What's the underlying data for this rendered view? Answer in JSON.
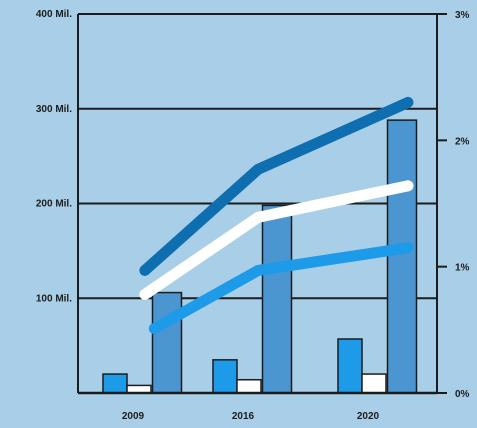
{
  "chart_data": {
    "type": "bar",
    "categories": [
      "2009",
      "2016",
      "2020"
    ],
    "left_axis": {
      "ylim": [
        0,
        400
      ],
      "ticks": [
        {
          "value": 100,
          "label": "100 Mil."
        },
        {
          "value": 200,
          "label": "200 Mil."
        },
        {
          "value": 300,
          "label": "300 Mil."
        },
        {
          "value": 400,
          "label": "400 Mil."
        }
      ]
    },
    "right_axis": {
      "ylim": [
        0,
        3
      ],
      "ticks": [
        {
          "value": 0,
          "label": "0%"
        },
        {
          "value": 1,
          "label": "1%"
        },
        {
          "value": 2,
          "label": "2%"
        },
        {
          "value": 3,
          "label": "3%"
        }
      ]
    },
    "bar_series": [
      {
        "color": "#1e9be8",
        "values": [
          20,
          35,
          57
        ]
      },
      {
        "color": "#ffffff",
        "values": [
          8,
          14,
          20
        ]
      },
      {
        "color": "#4b95d1",
        "values": [
          106,
          198,
          288
        ]
      }
    ],
    "line_series": [
      {
        "color": "#0e6eb0",
        "axis": "right",
        "x": [
          2008.8,
          2016,
          2020.8
        ],
        "values": [
          0.97,
          1.77,
          2.3
        ]
      },
      {
        "color": "#ffffff",
        "axis": "right",
        "x": [
          2008.8,
          2016,
          2020.8
        ],
        "values": [
          0.78,
          1.39,
          1.64
        ]
      },
      {
        "color": "#1e9be8",
        "axis": "right",
        "x": [
          2009.4,
          2016,
          2020.8
        ],
        "values": [
          0.51,
          0.97,
          1.15
        ]
      }
    ],
    "grid": true,
    "legend": "none"
  }
}
